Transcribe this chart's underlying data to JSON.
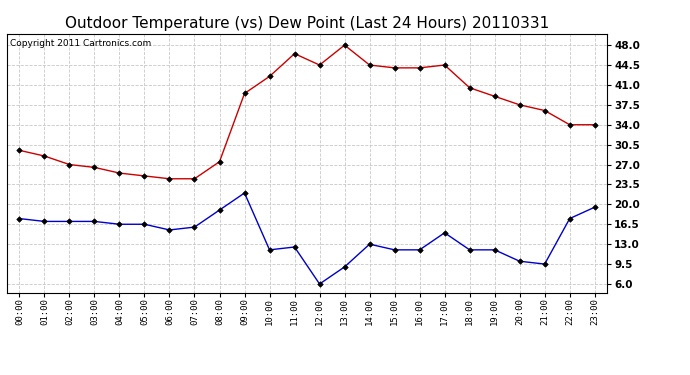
{
  "title": "Outdoor Temperature (vs) Dew Point (Last 24 Hours) 20110331",
  "copyright": "Copyright 2011 Cartronics.com",
  "x_labels": [
    "00:00",
    "01:00",
    "02:00",
    "03:00",
    "04:00",
    "05:00",
    "06:00",
    "07:00",
    "08:00",
    "09:00",
    "10:00",
    "11:00",
    "12:00",
    "13:00",
    "14:00",
    "15:00",
    "16:00",
    "17:00",
    "18:00",
    "19:00",
    "20:00",
    "21:00",
    "22:00",
    "23:00"
  ],
  "temp_red": [
    29.5,
    28.5,
    27.0,
    26.5,
    25.5,
    25.0,
    24.5,
    24.5,
    27.5,
    39.5,
    42.5,
    46.5,
    44.5,
    48.0,
    44.5,
    44.0,
    44.0,
    44.5,
    40.5,
    39.0,
    37.5,
    36.5,
    34.0,
    34.0
  ],
  "dew_blue": [
    17.5,
    17.0,
    17.0,
    17.0,
    16.5,
    16.5,
    15.5,
    16.0,
    19.0,
    22.0,
    12.0,
    12.5,
    6.0,
    9.0,
    13.0,
    12.0,
    12.0,
    15.0,
    12.0,
    12.0,
    10.0,
    9.5,
    17.5,
    19.5
  ],
  "y_ticks": [
    6.0,
    9.5,
    13.0,
    16.5,
    20.0,
    23.5,
    27.0,
    30.5,
    34.0,
    37.5,
    41.0,
    44.5,
    48.0
  ],
  "ylim": [
    4.5,
    50.0
  ],
  "bg_color": "#ffffff",
  "grid_color": "#c8c8c8",
  "red_color": "#cc0000",
  "blue_color": "#0000cc",
  "title_fontsize": 11,
  "copyright_fontsize": 6.5,
  "marker_color": "#000000"
}
